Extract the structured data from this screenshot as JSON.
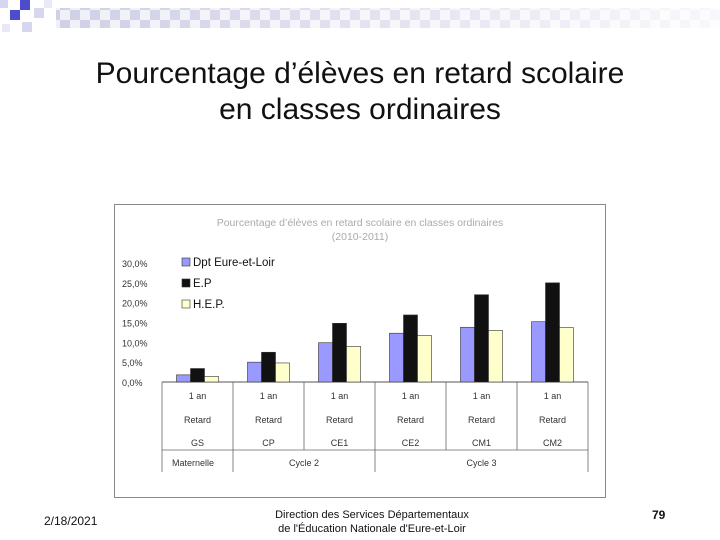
{
  "slide": {
    "title_line1": "Pourcentage d’élèves en retard scolaire",
    "title_line2": "en classes ordinaires",
    "date": "2/18/2021",
    "footer_line1": "Direction des Services Départementaux",
    "footer_line2": "de l'Éducation Nationale d'Eure-et-Loir",
    "page_number": "79"
  },
  "colors": {
    "dpt": "#9999ff",
    "ep": "#111111",
    "hep": "#ffffcc",
    "frame": "#888888",
    "title_text": "#aaaaaa",
    "axis_text": "#333333"
  },
  "chart_data": {
    "type": "bar",
    "title_line1": "Pourcentage d’élèves en retard scolaire en classes ordinaires",
    "title_line2": "(2010-2011)",
    "y_ticks": [
      "30,0%",
      "25,0%",
      "20,0%",
      "15,0%",
      "10,0%",
      "5,0%",
      "0,0%"
    ],
    "ylim": [
      0,
      30
    ],
    "ylabel": "",
    "xlabel": "",
    "legend_position": "top-left",
    "grid": false,
    "categories": [
      "GS",
      "CP",
      "CE1",
      "CE2",
      "CM1",
      "CM2"
    ],
    "category_row1": [
      "1 an",
      "1 an",
      "1 an",
      "1 an",
      "1 an",
      "1 an"
    ],
    "category_row2": [
      "Retard",
      "Retard",
      "Retard",
      "Retard",
      "Retard",
      "Retard"
    ],
    "groups": [
      {
        "label": "Maternelle",
        "span": 1
      },
      {
        "label": "Cycle 2",
        "span": 2
      },
      {
        "label": "Cycle 3",
        "span": 3
      }
    ],
    "series": [
      {
        "name": "Dpt Eure-et-Loir",
        "values": [
          1.8,
          5.0,
          9.9,
          12.3,
          13.8,
          15.2
        ]
      },
      {
        "name": "E.P",
        "values": [
          3.4,
          7.5,
          14.8,
          16.9,
          22.0,
          25.0
        ]
      },
      {
        "name": "H.E.P.",
        "values": [
          1.4,
          4.8,
          9.0,
          11.7,
          13.0,
          13.7
        ]
      }
    ]
  }
}
